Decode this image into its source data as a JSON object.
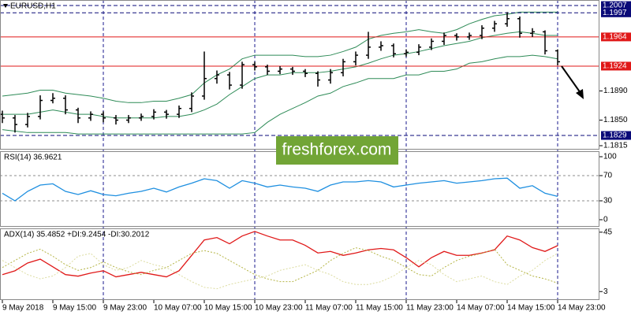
{
  "chart_data": [
    {
      "type": "ohlc",
      "title": "EURUSD,H1",
      "watermark": "freshforex.com",
      "color": "#000000",
      "categories": [
        "9 May 2018",
        null,
        null,
        null,
        "9 May 15:00",
        null,
        null,
        null,
        "9 May 23:00",
        null,
        null,
        null,
        "10 May 07:00",
        null,
        null,
        null,
        "10 May 15:00",
        null,
        null,
        null,
        "10 May 23:00",
        null,
        null,
        null,
        "11 May 07:00",
        null,
        null,
        null,
        "11 May 15:00",
        null,
        null,
        null,
        "11 May 23:00",
        null,
        null,
        null,
        "14 May 07:00",
        null,
        null,
        null,
        "14 May 15:00",
        null,
        null,
        null,
        "14 May 23:00"
      ],
      "open": [
        1.1858,
        1.1853,
        1.1844,
        1.1855,
        1.1877,
        1.188,
        1.1864,
        1.1853,
        1.1858,
        1.1853,
        1.185,
        1.1853,
        1.1855,
        1.1861,
        1.1858,
        1.1866,
        1.1883,
        1.1907,
        1.1912,
        1.1898,
        1.1926,
        1.1923,
        1.1917,
        1.192,
        1.1917,
        1.1914,
        1.1905,
        1.1915,
        1.193,
        1.1939,
        1.195,
        1.1952,
        1.1941,
        1.1943,
        1.195,
        1.1958,
        1.1966,
        1.1964,
        1.1966,
        1.1976,
        1.1982,
        1.1989,
        1.1969,
        1.1971,
        1.1945
      ],
      "high": [
        1.1863,
        1.1857,
        1.186,
        1.1884,
        1.1887,
        1.1884,
        1.1867,
        1.1862,
        1.1862,
        1.1857,
        1.1857,
        1.1859,
        1.1865,
        1.1864,
        1.187,
        1.1888,
        1.1944,
        1.1918,
        1.1916,
        1.193,
        1.193,
        1.1926,
        1.1924,
        1.1923,
        1.192,
        1.1917,
        1.192,
        1.1934,
        1.1944,
        1.1971,
        1.1958,
        1.1955,
        1.1947,
        1.1954,
        1.1962,
        1.197,
        1.1969,
        1.197,
        1.198,
        1.1986,
        1.1998,
        1.1992,
        1.1976,
        1.1973,
        1.1947
      ],
      "low": [
        1.1846,
        1.1833,
        1.184,
        1.1851,
        1.1873,
        1.1858,
        1.1846,
        1.1849,
        1.1847,
        1.1844,
        1.1846,
        1.1849,
        1.1851,
        1.1852,
        1.1853,
        1.1861,
        1.1878,
        1.19,
        1.1892,
        1.1893,
        1.1918,
        1.1912,
        1.1913,
        1.1912,
        1.1909,
        1.1896,
        1.19,
        1.191,
        1.1925,
        1.1934,
        1.1945,
        1.1936,
        1.1937,
        1.1939,
        1.1946,
        1.1953,
        1.1959,
        1.196,
        1.1961,
        1.1971,
        1.1978,
        1.1963,
        1.1964,
        1.194,
        1.1925
      ],
      "close": [
        1.1853,
        1.1844,
        1.1855,
        1.1877,
        1.188,
        1.1864,
        1.1853,
        1.1858,
        1.1853,
        1.185,
        1.1853,
        1.1855,
        1.1861,
        1.1858,
        1.1866,
        1.1883,
        1.1907,
        1.1912,
        1.1898,
        1.1926,
        1.1923,
        1.1917,
        1.192,
        1.1917,
        1.1914,
        1.1905,
        1.1915,
        1.193,
        1.1939,
        1.195,
        1.1952,
        1.1941,
        1.1943,
        1.195,
        1.1958,
        1.1966,
        1.1964,
        1.1966,
        1.1976,
        1.1982,
        1.1989,
        1.1969,
        1.1971,
        1.1945,
        1.193
      ],
      "bands": [
        {
          "color": "#2e8b57",
          "values": [
            1.1883,
            1.1885,
            1.1887,
            1.1891,
            1.1891,
            1.1887,
            1.1885,
            1.1883,
            1.188,
            1.1876,
            1.1874,
            1.1874,
            1.1876,
            1.1876,
            1.188,
            1.1885,
            1.1901,
            1.1912,
            1.192,
            1.1934,
            1.1939,
            1.1939,
            1.1939,
            1.1939,
            1.1937,
            1.1937,
            1.1939,
            1.1944,
            1.195,
            1.1961,
            1.1966,
            1.1969,
            1.1971,
            1.1974,
            1.1971,
            1.1969,
            1.1974,
            1.1982,
            1.1988,
            1.1993,
            1.1995,
            1.1998,
            1.1998,
            1.1998,
            1.1998
          ]
        },
        {
          "color": "#2e8b57",
          "values": [
            1.1858,
            1.1858,
            1.1858,
            1.1861,
            1.1864,
            1.1861,
            1.1858,
            1.1858,
            1.1855,
            1.1853,
            1.1853,
            1.1853,
            1.1853,
            1.1855,
            1.1855,
            1.1858,
            1.1864,
            1.1872,
            1.1885,
            1.1896,
            1.1907,
            1.1912,
            1.1912,
            1.1915,
            1.1915,
            1.1915,
            1.1917,
            1.192,
            1.1923,
            1.1928,
            1.1934,
            1.1939,
            1.1941,
            1.1944,
            1.1948,
            1.1952,
            1.1955,
            1.1958,
            1.1963,
            1.1966,
            1.1969,
            1.1971,
            1.1969,
            1.1966,
            1.1966
          ]
        },
        {
          "color": "#2e8b57",
          "values": [
            1.1837,
            1.1835,
            1.1833,
            1.1833,
            1.1833,
            1.1833,
            1.1831,
            1.1831,
            1.1831,
            1.1831,
            1.1831,
            1.1831,
            1.1831,
            1.1831,
            1.1831,
            1.1831,
            1.1831,
            1.1831,
            1.1831,
            1.1831,
            1.1833,
            1.1847,
            1.1858,
            1.1866,
            1.1874,
            1.1883,
            1.1887,
            1.1896,
            1.1901,
            1.1907,
            1.1907,
            1.1907,
            1.1912,
            1.1912,
            1.1917,
            1.1917,
            1.192,
            1.1928,
            1.193,
            1.1934,
            1.1937,
            1.1937,
            1.1939,
            1.1937,
            1.1934
          ]
        }
      ],
      "levels": [
        {
          "value": 1.2007,
          "color": "#0a0a78",
          "dashed": true
        },
        {
          "value": 1.1997,
          "color": "#0a0a78",
          "dashed": true
        },
        {
          "value": 1.1964,
          "color": "#e01818",
          "dashed": false
        },
        {
          "value": 1.1924,
          "color": "#e01818",
          "dashed": false
        },
        {
          "value": 1.1829,
          "color": "#0a0a78",
          "dashed": true
        }
      ],
      "ylim": [
        1.18096,
        1.20146
      ],
      "yticks": [
        {
          "value": 1.189,
          "label": "1.1890"
        },
        {
          "value": 1.185,
          "label": "1.1850"
        },
        1.1815
      ]
    },
    {
      "type": "line",
      "title": "RSI(14) 36.9621",
      "series": [
        {
          "color": "#1e8fe0",
          "dashed": false,
          "values": [
            42,
            30,
            45,
            55,
            57,
            45,
            40,
            46,
            40,
            38,
            42,
            45,
            50,
            44,
            52,
            58,
            65,
            62,
            50,
            62,
            58,
            52,
            55,
            52,
            50,
            45,
            55,
            60,
            60,
            62,
            60,
            52,
            55,
            58,
            60,
            62,
            58,
            60,
            62,
            65,
            66,
            50,
            54,
            42,
            37
          ]
        }
      ],
      "levels": [
        70,
        30
      ],
      "ylim": [
        -11.25,
        108.75
      ],
      "yticks": [
        0,
        30,
        70,
        100
      ]
    },
    {
      "type": "line",
      "title": "ADX(14) 35.4852 +DI:9.2454 -DI:30.2012",
      "series": [
        {
          "color": "#e01818",
          "dashed": false,
          "values": [
            15,
            17.7,
            23.2,
            25.9,
            20.5,
            15,
            13.9,
            16.1,
            17.7,
            13.4,
            15,
            16.6,
            15,
            13.4,
            17.7,
            28.6,
            39.5,
            41.2,
            36.8,
            42.3,
            45.5,
            42.3,
            39.5,
            39.5,
            35.7,
            30.3,
            31.4,
            28.6,
            30.3,
            32.5,
            33.5,
            32.5,
            27,
            20.5,
            27,
            31.4,
            28.6,
            28.6,
            30.3,
            32.5,
            42.3,
            39.5,
            34.1,
            31.4,
            35.5
          ]
        },
        {
          "color": "#b5b545",
          "dashed": true,
          "values": [
            20,
            25,
            30,
            33,
            28,
            22,
            18,
            20,
            24,
            20,
            17,
            15,
            18,
            20,
            25,
            30,
            32,
            30,
            25,
            20,
            15,
            12,
            10,
            10,
            14,
            18,
            25,
            30,
            34,
            32,
            28,
            25,
            20,
            15,
            14,
            20,
            25,
            28,
            30,
            33,
            22,
            18,
            14,
            12,
            9
          ]
        },
        {
          "color": "#dcdca0",
          "dashed": true,
          "values": [
            25,
            20,
            15,
            12,
            14,
            20,
            28,
            30,
            22,
            18,
            20,
            25,
            22,
            20,
            15,
            10,
            6,
            5,
            8,
            10,
            12,
            14,
            18,
            20,
            22,
            18,
            15,
            10,
            8,
            8,
            10,
            14,
            20,
            25,
            22,
            15,
            10,
            12,
            14,
            10,
            8,
            14,
            18,
            25,
            30
          ]
        }
      ],
      "ylim": [
        -3,
        47.7
      ],
      "yticks": [
        3,
        45
      ]
    }
  ]
}
